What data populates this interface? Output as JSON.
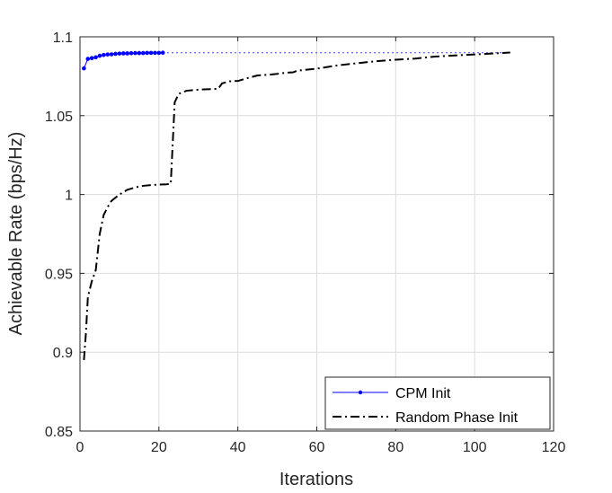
{
  "chart_data": {
    "type": "line",
    "xlabel": "Iterations",
    "ylabel": "Achievable Rate (bps/Hz)",
    "xlim": [
      0,
      120
    ],
    "ylim": [
      0.85,
      1.1
    ],
    "xticks": [
      0,
      20,
      40,
      60,
      80,
      100,
      120
    ],
    "yticks": [
      0.85,
      0.9,
      0.95,
      1,
      1.05,
      1.1
    ],
    "xtick_labels": [
      "0",
      "20",
      "40",
      "60",
      "80",
      "100",
      "120"
    ],
    "ytick_labels": [
      "0.85",
      "0.9",
      "0.95",
      "1",
      "1.05",
      "1.1"
    ],
    "grid": true,
    "legend_position": "bottom-right",
    "series": [
      {
        "name": "CPM Init",
        "color": "#0000ff",
        "line_style": "solid",
        "marker": "dot",
        "x": [
          1,
          2,
          3,
          4,
          5,
          6,
          7,
          8,
          9,
          10,
          11,
          12,
          13,
          14,
          15,
          16,
          17,
          18,
          19,
          20,
          21
        ],
        "y": [
          1.08,
          1.086,
          1.0865,
          1.087,
          1.088,
          1.0885,
          1.0888,
          1.0889,
          1.0892,
          1.0894,
          1.0895,
          1.0895,
          1.0896,
          1.0897,
          1.0897,
          1.0897,
          1.0898,
          1.0898,
          1.0898,
          1.0898,
          1.0899
        ],
        "extension": {
          "line_style": "dotted",
          "x": [
            21,
            109
          ],
          "y": [
            1.0899,
            1.0899
          ]
        }
      },
      {
        "name": "Random Phase Init",
        "color": "#000000",
        "line_style": "dash-dot",
        "marker": "none",
        "x": [
          1,
          1.5,
          2,
          3,
          4,
          5,
          6,
          7,
          8,
          10,
          12,
          14,
          16,
          18,
          20,
          22,
          23,
          24,
          25,
          27,
          30,
          33,
          35,
          36,
          38,
          40,
          42,
          45,
          48,
          50,
          52,
          54,
          55,
          60,
          65,
          70,
          75,
          80,
          85,
          90,
          95,
          100,
          105,
          109
        ],
        "y": [
          0.895,
          0.912,
          0.935,
          0.945,
          0.952,
          0.975,
          0.987,
          0.992,
          0.996,
          1.0,
          1.003,
          1.0045,
          1.0055,
          1.006,
          1.0063,
          1.0065,
          1.0068,
          1.0585,
          1.0638,
          1.0658,
          1.0665,
          1.0668,
          1.067,
          1.0705,
          1.0718,
          1.072,
          1.0735,
          1.0755,
          1.076,
          1.0765,
          1.0772,
          1.0775,
          1.0785,
          1.0798,
          1.0818,
          1.0832,
          1.0845,
          1.0855,
          1.0862,
          1.0875,
          1.0882,
          1.0888,
          1.0895,
          1.09
        ]
      }
    ]
  }
}
